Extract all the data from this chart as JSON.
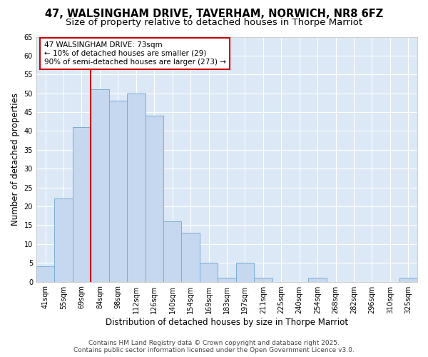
{
  "title_line1": "47, WALSINGHAM DRIVE, TAVERHAM, NORWICH, NR8 6FZ",
  "title_line2": "Size of property relative to detached houses in Thorpe Marriot",
  "xlabel": "Distribution of detached houses by size in Thorpe Marriot",
  "ylabel": "Number of detached properties",
  "categories": [
    "41sqm",
    "55sqm",
    "69sqm",
    "84sqm",
    "98sqm",
    "112sqm",
    "126sqm",
    "140sqm",
    "154sqm",
    "169sqm",
    "183sqm",
    "197sqm",
    "211sqm",
    "225sqm",
    "240sqm",
    "254sqm",
    "268sqm",
    "282sqm",
    "296sqm",
    "310sqm",
    "325sqm"
  ],
  "values": [
    4,
    22,
    41,
    51,
    48,
    50,
    44,
    16,
    13,
    5,
    1,
    5,
    1,
    0,
    0,
    1,
    0,
    0,
    0,
    0,
    1
  ],
  "bar_color": "#c5d8f0",
  "bar_edge_color": "#7aadd4",
  "vline_x_index": 2,
  "vline_color": "#cc0000",
  "annotation_text": "47 WALSINGHAM DRIVE: 73sqm\n← 10% of detached houses are smaller (29)\n90% of semi-detached houses are larger (273) →",
  "annotation_box_color": "#ffffff",
  "annotation_box_edge_color": "#cc0000",
  "ylim": [
    0,
    65
  ],
  "yticks": [
    0,
    5,
    10,
    15,
    20,
    25,
    30,
    35,
    40,
    45,
    50,
    55,
    60,
    65
  ],
  "plot_bg_color": "#dce8f5",
  "fig_bg_color": "#ffffff",
  "grid_color": "#ffffff",
  "footer_line1": "Contains HM Land Registry data © Crown copyright and database right 2025.",
  "footer_line2": "Contains public sector information licensed under the Open Government Licence v3.0.",
  "title_fontsize": 10.5,
  "subtitle_fontsize": 9.5,
  "axis_label_fontsize": 8.5,
  "tick_fontsize": 7,
  "annotation_fontsize": 7.5,
  "footer_fontsize": 6.5
}
